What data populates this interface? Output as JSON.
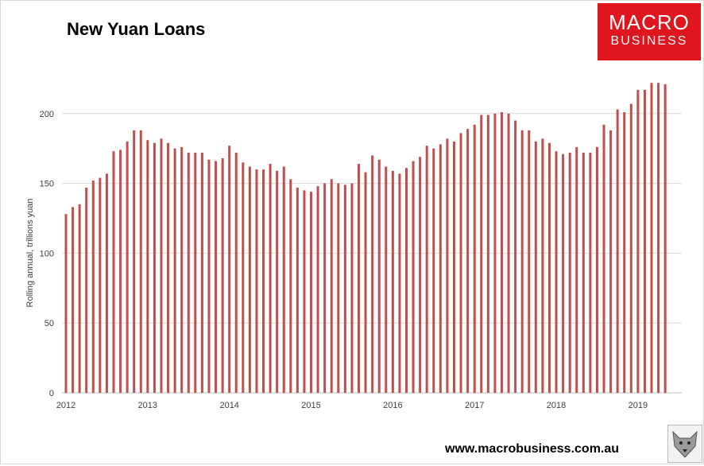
{
  "title": "New Yuan Loans",
  "logo": {
    "line1": "MACRO",
    "line2": "BUSINESS",
    "color": "#e0161e"
  },
  "footer": "www.macrobusiness.com.au",
  "mascot_icon": "wolf-mascot-icon",
  "chart_data": {
    "type": "bar",
    "ylabel": "Rolling annual, trillions yuan",
    "xlabel": "",
    "ylim": [
      0,
      250
    ],
    "yticks": [
      0,
      50,
      100,
      150,
      200
    ],
    "grid": true,
    "legend": "none",
    "bar_color": "#c0504d",
    "x_start": "2012-01",
    "x_tick_labels": [
      "2012",
      "2013",
      "2014",
      "2015",
      "2016",
      "2017",
      "2018",
      "2019"
    ],
    "values": [
      128,
      133,
      135,
      147,
      152,
      154,
      157,
      173,
      174,
      180,
      188,
      188,
      181,
      179,
      182,
      179,
      175,
      176,
      172,
      172,
      172,
      167,
      166,
      168,
      177,
      172,
      165,
      162,
      160,
      160,
      164,
      159,
      162,
      153,
      147,
      145,
      144,
      148,
      150,
      153,
      150,
      149,
      150,
      164,
      158,
      170,
      167,
      162,
      159,
      157,
      161,
      166,
      169,
      177,
      175,
      178,
      182,
      180,
      186,
      189,
      192,
      199,
      199,
      200,
      201,
      200,
      195,
      188,
      188,
      180,
      182,
      179,
      173,
      171,
      172,
      176,
      172,
      172,
      176,
      192,
      188,
      203,
      201,
      207,
      217,
      217,
      222,
      222,
      221
    ]
  }
}
